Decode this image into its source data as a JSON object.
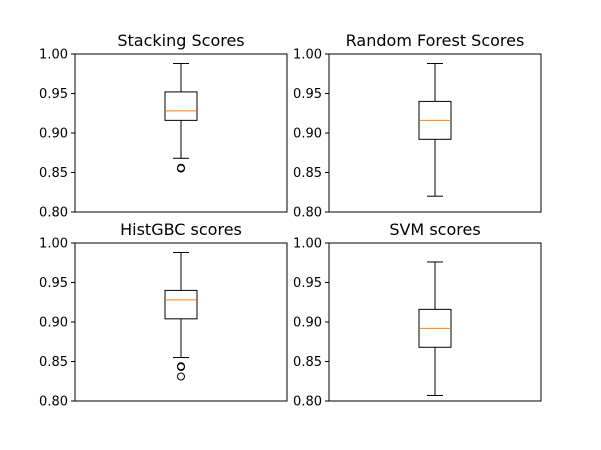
{
  "chart_data": [
    {
      "type": "box",
      "title": "Stacking Scores",
      "ylim": [
        0.8,
        1.0
      ],
      "yticks": [
        "0.80",
        "0.85",
        "0.90",
        "0.95",
        "1.00"
      ],
      "grid": false,
      "box": {
        "whisker_low": 0.868,
        "q1": 0.916,
        "median": 0.928,
        "q3": 0.952,
        "whisker_high": 0.988,
        "outliers": [
          0.855,
          0.856
        ]
      },
      "colors": {
        "box": "#000000",
        "median": "#ff7f0e"
      }
    },
    {
      "type": "box",
      "title": "Random Forest Scores",
      "ylim": [
        0.8,
        1.0
      ],
      "yticks": [
        "0.80",
        "0.85",
        "0.90",
        "0.95",
        "1.00"
      ],
      "grid": false,
      "box": {
        "whisker_low": 0.82,
        "q1": 0.892,
        "median": 0.916,
        "q3": 0.94,
        "whisker_high": 0.988,
        "outliers": []
      },
      "colors": {
        "box": "#000000",
        "median": "#ff7f0e"
      }
    },
    {
      "type": "box",
      "title": "HistGBC scores",
      "ylim": [
        0.8,
        1.0
      ],
      "yticks": [
        "0.80",
        "0.85",
        "0.90",
        "0.95",
        "1.00"
      ],
      "grid": false,
      "box": {
        "whisker_low": 0.855,
        "q1": 0.904,
        "median": 0.928,
        "q3": 0.94,
        "whisker_high": 0.988,
        "outliers": [
          0.844,
          0.843,
          0.831
        ]
      },
      "colors": {
        "box": "#000000",
        "median": "#ff7f0e"
      }
    },
    {
      "type": "box",
      "title": "SVM scores",
      "ylim": [
        0.8,
        1.0
      ],
      "yticks": [
        "0.80",
        "0.85",
        "0.90",
        "0.95",
        "1.00"
      ],
      "grid": false,
      "box": {
        "whisker_low": 0.807,
        "q1": 0.868,
        "median": 0.892,
        "q3": 0.916,
        "whisker_high": 0.976,
        "outliers": []
      },
      "colors": {
        "box": "#000000",
        "median": "#ff7f0e"
      }
    }
  ]
}
